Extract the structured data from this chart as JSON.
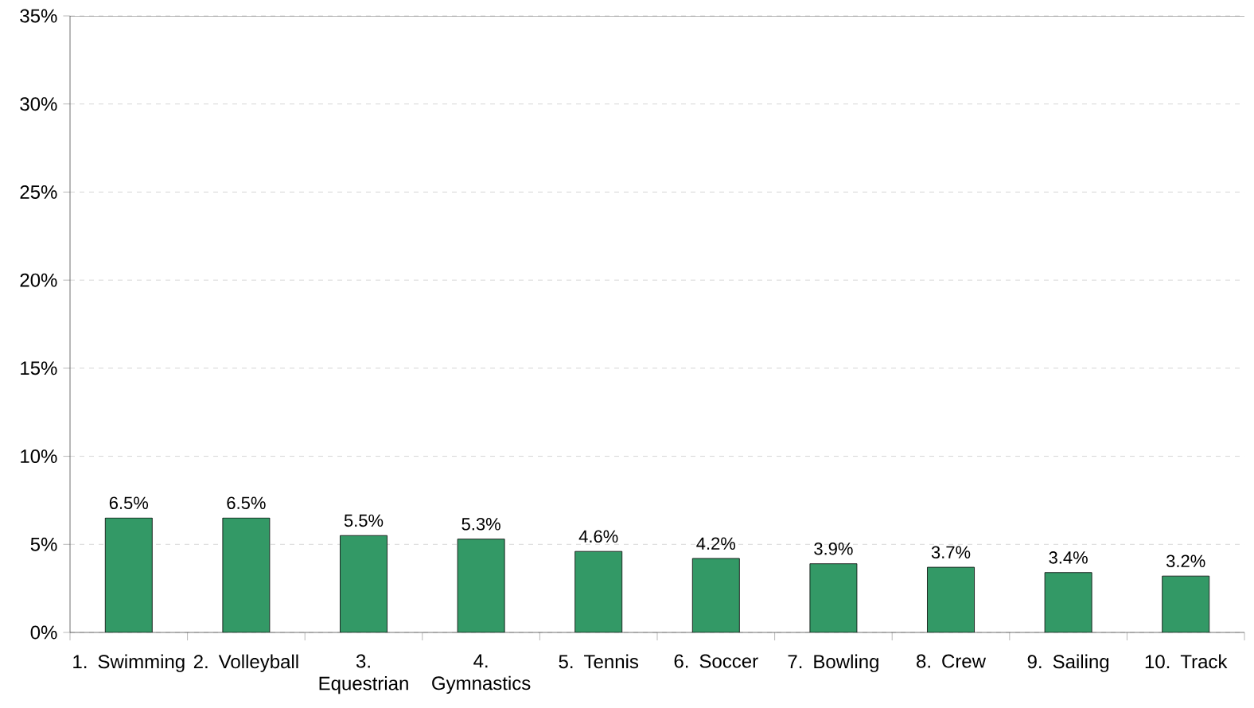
{
  "chart_data": {
    "type": "bar",
    "categories": [
      "1. Swimming",
      "2. Volleyball",
      "3. Equestrian",
      "4. Gymnastics",
      "5. Tennis",
      "6. Soccer",
      "7. Bowling",
      "8. Crew",
      "9. Sailing",
      "10. Track"
    ],
    "values": [
      6.5,
      6.5,
      5.5,
      5.3,
      4.6,
      4.2,
      3.9,
      3.7,
      3.4,
      3.2
    ],
    "value_labels": [
      "6.5%",
      "6.5%",
      "5.5%",
      "5.3%",
      "4.6%",
      "4.2%",
      "3.9%",
      "3.7%",
      "3.4%",
      "3.2%"
    ],
    "color": "#339966",
    "ylim": [
      0,
      35
    ],
    "yticks": [
      {
        "value": 0,
        "label": "0%"
      },
      {
        "value": 5,
        "label": "5%"
      },
      {
        "value": 10,
        "label": "10%"
      },
      {
        "value": 15,
        "label": "15%"
      },
      {
        "value": 20,
        "label": "20%"
      },
      {
        "value": 25,
        "label": "25%"
      },
      {
        "value": 30,
        "label": "30%"
      },
      {
        "value": 35,
        "label": "35%"
      }
    ],
    "grid": "y"
  }
}
